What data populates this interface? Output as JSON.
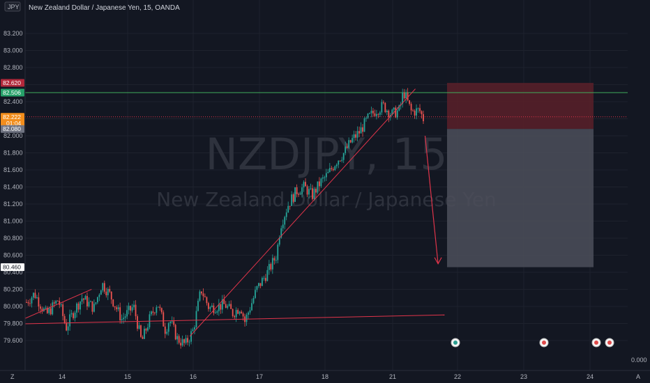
{
  "header": {
    "symbol_box": "JPY",
    "title": "New Zealand Dollar / Japanese Yen, 15, OANDA"
  },
  "watermark": {
    "symbol": "NZDJPY, 15",
    "name": "New Zealand Dollar / Japanese Yen"
  },
  "price_axis": {
    "ticks": [
      "83.200",
      "83.000",
      "82.800",
      "82.600",
      "82.400",
      "82.200",
      "82.000",
      "81.800",
      "81.600",
      "81.400",
      "81.200",
      "81.000",
      "80.800",
      "80.600",
      "80.400",
      "80.200",
      "80.000",
      "79.800",
      "79.600"
    ],
    "zero_label": "0.000"
  },
  "time_axis": {
    "labels": [
      "14",
      "15",
      "16",
      "17",
      "18",
      "21",
      "22",
      "23",
      "24"
    ],
    "bottom_left": "Z",
    "bottom_right": "A"
  },
  "price_badges": [
    {
      "label": "82.620",
      "value": 82.62,
      "color": "#b2283a"
    },
    {
      "label": "82.506",
      "value": 82.506,
      "color": "#26a169"
    },
    {
      "label": "82.222",
      "sublabel": "01:04",
      "value": 82.222,
      "color": "#f28d1b"
    },
    {
      "label": "82.080",
      "value": 82.08,
      "color": "#707482"
    },
    {
      "label": "80.460",
      "value": 80.46,
      "color": "#ffffff"
    }
  ],
  "colors": {
    "background": "#131722",
    "grid": "#1e222d",
    "up_candle": "#26a69a",
    "down_candle": "#ef5350",
    "trendline": "#e0344a",
    "stop_zone": "#5a2029",
    "target_zone": "#4c4f5a",
    "resistance_line": "#3fae5c"
  },
  "chart_data": {
    "type": "candlestick",
    "timeframe": "15",
    "ylim": [
      79.5,
      83.3
    ],
    "x_tick_labels": [
      "14",
      "15",
      "16",
      "17",
      "18",
      "21",
      "22",
      "23",
      "24"
    ],
    "last_price": 82.222,
    "levels": {
      "stop": 82.62,
      "resistance": 82.506,
      "current": 82.222,
      "entry": 82.08,
      "target": 80.46
    },
    "short_position": {
      "stop": 82.62,
      "entry": 82.08,
      "target": 80.46
    },
    "trendlines": [
      {
        "from": [
          "13.5",
          79.73
        ],
        "to": [
          "14.45",
          80.2
        ]
      },
      {
        "from": [
          "15.95",
          79.65
        ],
        "to": [
          "21.35",
          82.55
        ]
      },
      {
        "from": [
          "13.5",
          79.79
        ],
        "to": [
          "21.8",
          79.9
        ]
      }
    ],
    "projection_arrow": {
      "from": [
        "21.5",
        82.0
      ],
      "to": [
        "21.7",
        80.5
      ]
    },
    "price_path": [
      [
        0,
        80.05
      ],
      [
        0.02,
        80.15
      ],
      [
        0.05,
        79.9
      ],
      [
        0.08,
        80.08
      ],
      [
        0.1,
        79.75
      ],
      [
        0.12,
        79.95
      ],
      [
        0.14,
        80.1
      ],
      [
        0.17,
        79.98
      ],
      [
        0.19,
        80.27
      ],
      [
        0.21,
        80.14
      ],
      [
        0.24,
        79.85
      ],
      [
        0.27,
        80.0
      ],
      [
        0.29,
        79.58
      ],
      [
        0.31,
        79.85
      ],
      [
        0.33,
        80.05
      ],
      [
        0.35,
        79.72
      ],
      [
        0.36,
        79.85
      ],
      [
        0.38,
        79.62
      ],
      [
        0.4,
        79.55
      ],
      [
        0.42,
        79.72
      ],
      [
        0.44,
        80.2
      ],
      [
        0.46,
        79.98
      ],
      [
        0.48,
        80.0
      ],
      [
        0.5,
        80.02
      ],
      [
        0.52,
        79.92
      ],
      [
        0.54,
        80.0
      ],
      [
        0.55,
        79.82
      ],
      [
        0.58,
        80.2
      ],
      [
        0.61,
        80.42
      ],
      [
        0.63,
        80.6
      ],
      [
        0.64,
        80.95
      ],
      [
        0.66,
        81.2
      ],
      [
        0.68,
        81.35
      ],
      [
        0.7,
        81.4
      ],
      [
        0.72,
        81.3
      ],
      [
        0.74,
        81.45
      ],
      [
        0.76,
        81.55
      ],
      [
        0.78,
        81.7
      ],
      [
        0.8,
        81.8
      ],
      [
        0.82,
        81.95
      ],
      [
        0.84,
        82.05
      ],
      [
        0.86,
        82.2
      ],
      [
        0.88,
        82.3
      ],
      [
        0.9,
        82.35
      ],
      [
        0.92,
        82.25
      ],
      [
        0.94,
        82.3
      ],
      [
        0.95,
        82.52
      ],
      [
        0.97,
        82.28
      ],
      [
        0.99,
        82.3
      ],
      [
        1.0,
        82.2
      ]
    ]
  }
}
